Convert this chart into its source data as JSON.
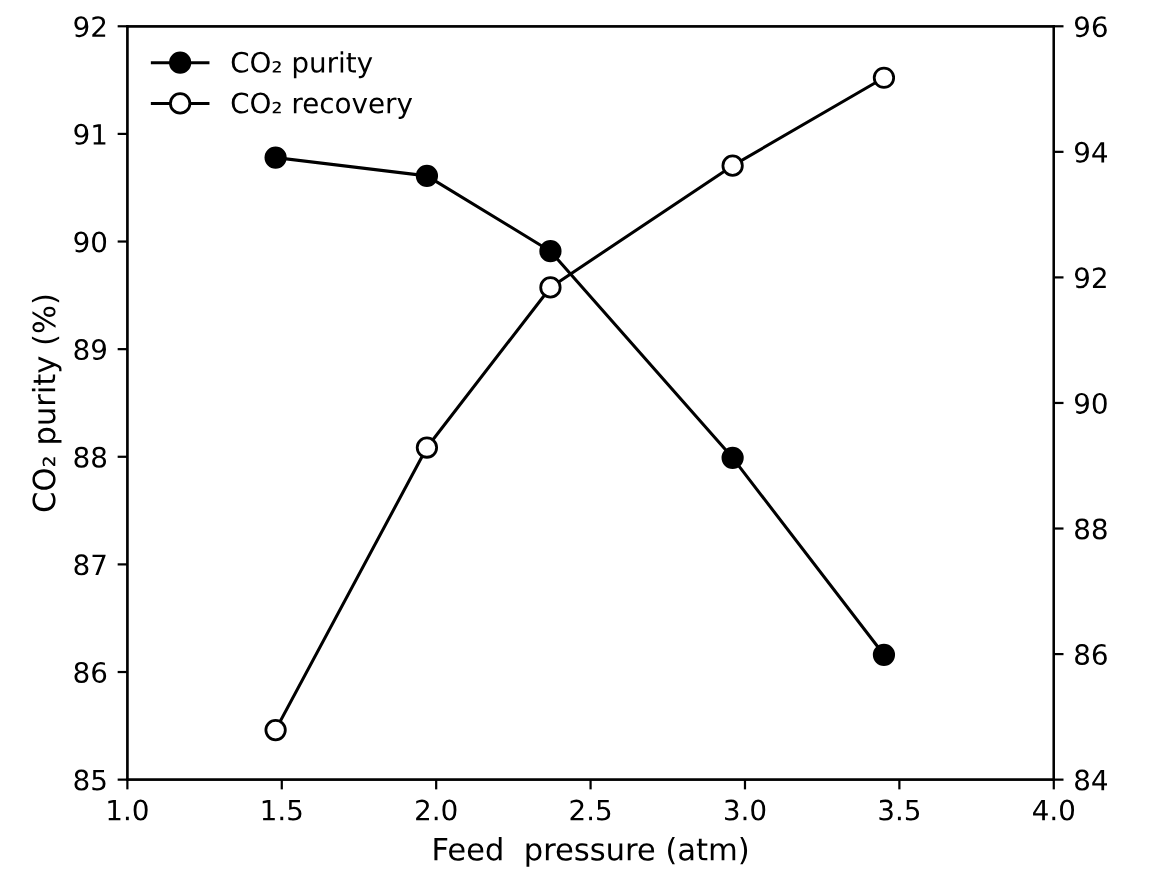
{
  "chart_data": {
    "type": "line",
    "xlabel": "Feed  pressure (atm)",
    "ylabel": "CO₂ purity (%)",
    "x": [
      1.48,
      1.97,
      2.37,
      2.96,
      3.45
    ],
    "series": [
      {
        "name": "CO₂ purity",
        "color": "#000000",
        "values": [
          90.78,
          90.61,
          89.91,
          87.99,
          86.16
        ],
        "marker": "circle"
      },
      {
        "name": "CO₂ recovery",
        "color": "#000000",
        "values": [
          84.79,
          89.29,
          91.84,
          93.78,
          95.18
        ],
        "axis": "y2",
        "marker": "circle"
      }
    ],
    "xlim": [
      1.0,
      4.0
    ],
    "xticks": [
      {
        "value": 1.0,
        "label": "1.0"
      },
      {
        "value": 1.5,
        "label": "1.5"
      },
      {
        "value": 2.0,
        "label": "2.0"
      },
      {
        "value": 2.5,
        "label": "2.5"
      },
      {
        "value": 3.0,
        "label": "3.0"
      },
      {
        "value": 3.5,
        "label": "3.5"
      },
      {
        "value": 4.0,
        "label": "4.0"
      }
    ],
    "ylim": [
      85,
      92
    ],
    "yticks": [
      85,
      86,
      87,
      88,
      89,
      90,
      91,
      92
    ],
    "y2lim": [
      84,
      96
    ],
    "y2ticks": [
      84,
      86,
      88,
      90,
      92,
      94,
      96
    ],
    "legend": "top left",
    "grid": false,
    "line_style": "solid"
  }
}
